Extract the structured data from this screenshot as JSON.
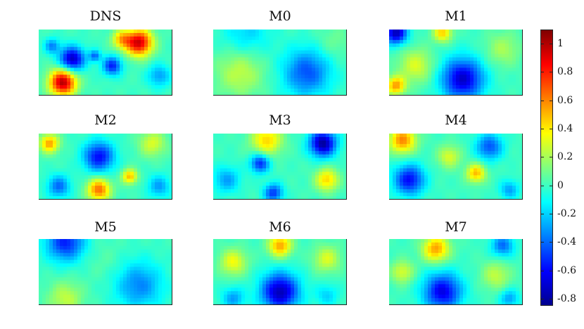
{
  "chart_data": {
    "type": "heatmap",
    "colormap": "jet",
    "panels": [
      {
        "title": "DNS",
        "blobs": [
          {
            "x": 0.18,
            "y": 0.8,
            "r": 0.14,
            "v": 1.0
          },
          {
            "x": 0.75,
            "y": 0.2,
            "r": 0.14,
            "v": 0.95
          },
          {
            "x": 0.62,
            "y": 0.15,
            "r": 0.1,
            "v": 0.45
          },
          {
            "x": 0.25,
            "y": 0.45,
            "r": 0.13,
            "v": -0.75
          },
          {
            "x": 0.55,
            "y": 0.55,
            "r": 0.1,
            "v": -0.55
          },
          {
            "x": 0.42,
            "y": 0.4,
            "r": 0.06,
            "v": -0.4
          },
          {
            "x": 0.9,
            "y": 0.7,
            "r": 0.12,
            "v": -0.3
          },
          {
            "x": 0.1,
            "y": 0.25,
            "r": 0.08,
            "v": -0.35
          }
        ]
      },
      {
        "title": "M0",
        "blobs": [
          {
            "x": 0.25,
            "y": 0.05,
            "r": 0.25,
            "v": -0.2
          },
          {
            "x": 0.7,
            "y": 0.65,
            "r": 0.25,
            "v": -0.45
          },
          {
            "x": 0.2,
            "y": 0.65,
            "r": 0.25,
            "v": 0.25
          },
          {
            "x": 0.9,
            "y": 0.2,
            "r": 0.18,
            "v": 0.1
          }
        ]
      },
      {
        "title": "M1",
        "blobs": [
          {
            "x": 0.05,
            "y": 0.05,
            "r": 0.12,
            "v": -0.75
          },
          {
            "x": 0.4,
            "y": 0.05,
            "r": 0.1,
            "v": 0.45
          },
          {
            "x": 0.55,
            "y": 0.75,
            "r": 0.22,
            "v": -0.7
          },
          {
            "x": 0.05,
            "y": 0.85,
            "r": 0.1,
            "v": 0.55
          },
          {
            "x": 0.2,
            "y": 0.55,
            "r": 0.18,
            "v": 0.3
          },
          {
            "x": 0.85,
            "y": 0.3,
            "r": 0.18,
            "v": 0.2
          }
        ]
      },
      {
        "title": "M2",
        "blobs": [
          {
            "x": 0.08,
            "y": 0.15,
            "r": 0.1,
            "v": 0.55
          },
          {
            "x": 0.45,
            "y": 0.35,
            "r": 0.16,
            "v": -0.6
          },
          {
            "x": 0.45,
            "y": 0.85,
            "r": 0.12,
            "v": 0.65
          },
          {
            "x": 0.68,
            "y": 0.65,
            "r": 0.08,
            "v": 0.5
          },
          {
            "x": 0.85,
            "y": 0.15,
            "r": 0.14,
            "v": 0.3
          },
          {
            "x": 0.15,
            "y": 0.8,
            "r": 0.12,
            "v": -0.4
          },
          {
            "x": 0.9,
            "y": 0.8,
            "r": 0.12,
            "v": -0.3
          }
        ]
      },
      {
        "title": "M3",
        "blobs": [
          {
            "x": 0.82,
            "y": 0.15,
            "r": 0.14,
            "v": -0.8
          },
          {
            "x": 0.35,
            "y": 0.45,
            "r": 0.1,
            "v": -0.55
          },
          {
            "x": 0.4,
            "y": 0.1,
            "r": 0.16,
            "v": 0.45
          },
          {
            "x": 0.85,
            "y": 0.7,
            "r": 0.12,
            "v": 0.45
          },
          {
            "x": 0.45,
            "y": 0.9,
            "r": 0.1,
            "v": -0.5
          },
          {
            "x": 0.1,
            "y": 0.7,
            "r": 0.14,
            "v": -0.3
          }
        ]
      },
      {
        "title": "M4",
        "blobs": [
          {
            "x": 0.1,
            "y": 0.1,
            "r": 0.14,
            "v": 0.6
          },
          {
            "x": 0.65,
            "y": 0.6,
            "r": 0.1,
            "v": 0.5
          },
          {
            "x": 0.15,
            "y": 0.7,
            "r": 0.16,
            "v": -0.6
          },
          {
            "x": 0.75,
            "y": 0.2,
            "r": 0.14,
            "v": -0.45
          },
          {
            "x": 0.45,
            "y": 0.35,
            "r": 0.12,
            "v": 0.3
          },
          {
            "x": 0.9,
            "y": 0.85,
            "r": 0.1,
            "v": -0.3
          }
        ]
      },
      {
        "title": "M5",
        "blobs": [
          {
            "x": 0.2,
            "y": 0.05,
            "r": 0.2,
            "v": -0.55
          },
          {
            "x": 0.75,
            "y": 0.7,
            "r": 0.25,
            "v": -0.35
          },
          {
            "x": 0.2,
            "y": 0.9,
            "r": 0.18,
            "v": 0.25
          },
          {
            "x": 0.5,
            "y": 0.35,
            "r": 0.2,
            "v": 0.05
          }
        ]
      },
      {
        "title": "M6",
        "blobs": [
          {
            "x": 0.5,
            "y": 0.8,
            "r": 0.2,
            "v": -0.75
          },
          {
            "x": 0.5,
            "y": 0.1,
            "r": 0.12,
            "v": 0.55
          },
          {
            "x": 0.15,
            "y": 0.35,
            "r": 0.14,
            "v": 0.35
          },
          {
            "x": 0.85,
            "y": 0.3,
            "r": 0.14,
            "v": 0.3
          },
          {
            "x": 0.15,
            "y": 0.9,
            "r": 0.12,
            "v": -0.3
          },
          {
            "x": 0.85,
            "y": 0.85,
            "r": 0.12,
            "v": -0.2
          }
        ]
      },
      {
        "title": "M7",
        "blobs": [
          {
            "x": 0.35,
            "y": 0.15,
            "r": 0.14,
            "v": 0.55
          },
          {
            "x": 0.4,
            "y": 0.8,
            "r": 0.2,
            "v": -0.65
          },
          {
            "x": 0.85,
            "y": 0.1,
            "r": 0.12,
            "v": -0.4
          },
          {
            "x": 0.1,
            "y": 0.5,
            "r": 0.12,
            "v": 0.3
          },
          {
            "x": 0.8,
            "y": 0.55,
            "r": 0.15,
            "v": 0.25
          },
          {
            "x": 0.9,
            "y": 0.9,
            "r": 0.1,
            "v": -0.3
          }
        ]
      }
    ],
    "colorbar": {
      "range": [
        -0.85,
        1.1
      ],
      "ticks": [
        1,
        0.8,
        0.6,
        0.4,
        0.2,
        0,
        -0.2,
        -0.4,
        -0.6,
        -0.8
      ],
      "tick_labels": [
        "1",
        "0.8",
        "0.6",
        "0.4",
        "0.2",
        "0",
        "-0.2",
        "-0.4",
        "-0.6",
        "-0.8"
      ]
    }
  }
}
